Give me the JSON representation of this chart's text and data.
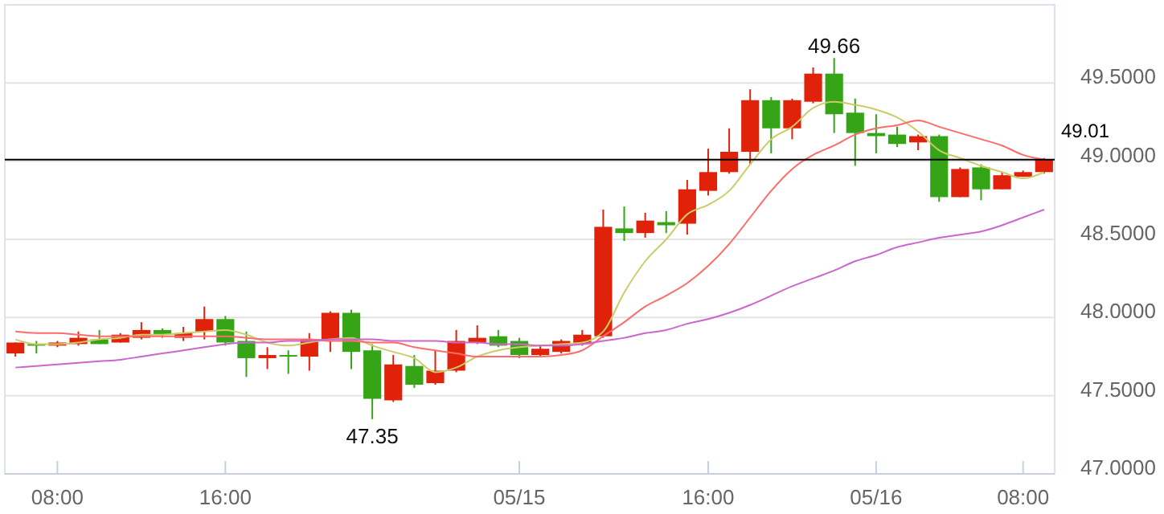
{
  "chart_data": {
    "type": "candlestick",
    "categories": [
      null,
      null,
      "08:00",
      null,
      null,
      null,
      null,
      null,
      null,
      null,
      "16:00",
      null,
      null,
      null,
      null,
      null,
      null,
      null,
      null,
      null,
      null,
      null,
      null,
      null,
      "05/15",
      null,
      null,
      null,
      null,
      null,
      null,
      null,
      null,
      "16:00",
      null,
      null,
      null,
      null,
      null,
      null,
      null,
      "05/16",
      null,
      null,
      null,
      null,
      null,
      null,
      "08:00",
      null
    ],
    "ohlc": [
      [
        47.77,
        47.84,
        47.75,
        47.84
      ],
      [
        47.83,
        47.85,
        47.77,
        47.82
      ],
      [
        47.82,
        47.85,
        47.81,
        47.84
      ],
      [
        47.83,
        47.91,
        47.82,
        47.87
      ],
      [
        47.86,
        47.92,
        47.83,
        47.83
      ],
      [
        47.84,
        47.9,
        47.84,
        47.89
      ],
      [
        47.87,
        47.97,
        47.86,
        47.92
      ],
      [
        47.92,
        47.93,
        47.87,
        47.89
      ],
      [
        47.87,
        47.94,
        47.85,
        47.9
      ],
      [
        47.91,
        48.07,
        47.86,
        47.99
      ],
      [
        47.99,
        48.01,
        47.82,
        47.84
      ],
      [
        47.85,
        47.91,
        47.62,
        47.74
      ],
      [
        47.74,
        47.81,
        47.67,
        47.76
      ],
      [
        47.76,
        47.79,
        47.64,
        47.75
      ],
      [
        47.75,
        47.9,
        47.66,
        47.86
      ],
      [
        47.86,
        48.04,
        47.78,
        48.03
      ],
      [
        48.03,
        48.05,
        47.67,
        47.78
      ],
      [
        47.79,
        47.83,
        47.35,
        47.48
      ],
      [
        47.47,
        47.76,
        47.46,
        47.7
      ],
      [
        47.69,
        47.76,
        47.55,
        47.57
      ],
      [
        47.58,
        47.79,
        47.57,
        47.66
      ],
      [
        47.66,
        47.92,
        47.65,
        47.85
      ],
      [
        47.84,
        47.95,
        47.83,
        47.87
      ],
      [
        47.88,
        47.92,
        47.81,
        47.82
      ],
      [
        47.85,
        47.87,
        47.74,
        47.76
      ],
      [
        47.76,
        47.82,
        47.75,
        47.8
      ],
      [
        47.78,
        47.86,
        47.77,
        47.85
      ],
      [
        47.83,
        47.92,
        47.82,
        47.89
      ],
      [
        47.88,
        48.69,
        47.87,
        48.58
      ],
      [
        48.57,
        48.71,
        48.49,
        48.54
      ],
      [
        48.54,
        48.67,
        48.51,
        48.62
      ],
      [
        48.61,
        48.68,
        48.54,
        48.59
      ],
      [
        48.6,
        48.88,
        48.53,
        48.82
      ],
      [
        48.81,
        49.08,
        48.78,
        48.93
      ],
      [
        48.93,
        49.21,
        48.92,
        49.06
      ],
      [
        49.06,
        49.46,
        48.98,
        49.39
      ],
      [
        49.39,
        49.41,
        49.05,
        49.21
      ],
      [
        49.21,
        49.4,
        49.14,
        49.39
      ],
      [
        49.38,
        49.6,
        49.37,
        49.56
      ],
      [
        49.56,
        49.66,
        49.18,
        49.3
      ],
      [
        49.31,
        49.4,
        48.97,
        49.18
      ],
      [
        49.18,
        49.3,
        49.05,
        49.16
      ],
      [
        49.17,
        49.22,
        49.09,
        49.11
      ],
      [
        49.12,
        49.17,
        49.07,
        49.16
      ],
      [
        49.16,
        49.17,
        48.74,
        48.77
      ],
      [
        48.77,
        48.96,
        48.77,
        48.95
      ],
      [
        48.96,
        48.98,
        48.75,
        48.82
      ],
      [
        48.82,
        48.93,
        48.82,
        48.91
      ],
      [
        48.9,
        48.94,
        48.9,
        48.93
      ],
      [
        48.93,
        49.02,
        48.92,
        49.01
      ]
    ],
    "colors": [
      "#e0220a",
      "#35a517",
      "#e0220a",
      "#e0220a",
      "#35a517",
      "#e0220a",
      "#e0220a",
      "#35a517",
      "#e0220a",
      "#e0220a",
      "#35a517",
      "#35a517",
      "#e0220a",
      "#35a517",
      "#e0220a",
      "#e0220a",
      "#35a517",
      "#35a517",
      "#e0220a",
      "#35a517",
      "#e0220a",
      "#e0220a",
      "#e0220a",
      "#35a517",
      "#35a517",
      "#e0220a",
      "#e0220a",
      "#e0220a",
      "#e0220a",
      "#35a517",
      "#e0220a",
      "#35a517",
      "#e0220a",
      "#e0220a",
      "#e0220a",
      "#e0220a",
      "#35a517",
      "#e0220a",
      "#e0220a",
      "#35a517",
      "#35a517",
      "#35a517",
      "#35a517",
      "#e0220a",
      "#35a517",
      "#e0220a",
      "#35a517",
      "#e0220a",
      "#e0220a",
      "#e0220a"
    ],
    "series": [
      {
        "type": "line",
        "color": "#cccc66",
        "values": [
          47.86,
          47.83,
          47.83,
          47.84,
          47.86,
          47.87,
          47.89,
          47.89,
          47.9,
          47.91,
          47.92,
          47.89,
          47.84,
          47.82,
          47.84,
          47.86,
          47.87,
          47.82,
          47.78,
          47.74,
          47.65,
          47.68,
          47.75,
          47.79,
          47.81,
          47.82,
          47.83,
          47.84,
          47.91,
          48.16,
          48.36,
          48.5,
          48.66,
          48.72,
          48.81,
          48.98,
          49.14,
          49.22,
          49.34,
          49.38,
          49.36,
          49.33,
          49.28,
          49.19,
          49.07,
          49.02,
          48.97,
          48.93,
          48.89,
          48.93
        ]
      },
      {
        "type": "line",
        "color": "#ff6b6b",
        "values": [
          47.91,
          47.9,
          47.9,
          47.89,
          47.88,
          47.88,
          47.88,
          47.88,
          47.88,
          47.88,
          47.88,
          47.87,
          47.86,
          47.86,
          47.86,
          47.85,
          47.85,
          47.84,
          47.84,
          47.81,
          47.79,
          47.77,
          47.75,
          47.75,
          47.75,
          47.75,
          47.76,
          47.79,
          47.88,
          47.97,
          48.07,
          48.14,
          48.22,
          48.33,
          48.47,
          48.64,
          48.81,
          48.95,
          49.04,
          49.1,
          49.17,
          49.21,
          49.23,
          49.26,
          49.22,
          49.18,
          49.14,
          49.1,
          49.04,
          49.01
        ]
      },
      {
        "type": "line",
        "color": "#cc66cc",
        "values": [
          47.68,
          47.69,
          47.7,
          47.71,
          47.72,
          47.73,
          47.75,
          47.77,
          47.79,
          47.81,
          47.83,
          47.84,
          47.84,
          47.85,
          47.85,
          47.86,
          47.86,
          47.86,
          47.85,
          47.85,
          47.85,
          47.84,
          47.84,
          47.83,
          47.83,
          47.82,
          47.82,
          47.83,
          47.85,
          47.87,
          47.9,
          47.92,
          47.96,
          47.99,
          48.03,
          48.08,
          48.14,
          48.2,
          48.25,
          48.3,
          48.36,
          48.4,
          48.45,
          48.48,
          48.51,
          48.53,
          48.55,
          48.59,
          48.64,
          48.69
        ]
      }
    ],
    "ylim": [
      47,
      50
    ],
    "yticks": [
      {
        "value": 47,
        "label": "47.0000"
      },
      {
        "value": 47.5,
        "label": "47.5000"
      },
      {
        "value": 48,
        "label": "48.0000"
      },
      {
        "value": 48.5,
        "label": "48.5000"
      },
      {
        "value": 49,
        "label": "49.0000"
      },
      {
        "value": 49.5,
        "label": "49.5000"
      }
    ],
    "grid": "y",
    "ref_lines": [
      {
        "axis": "y",
        "value": 49.01,
        "label": "49.01",
        "color": "#000000"
      }
    ],
    "annotations": [
      {
        "text": "47.35",
        "y": 47.35
      },
      {
        "text": "49.66",
        "y": 49.66
      }
    ]
  }
}
